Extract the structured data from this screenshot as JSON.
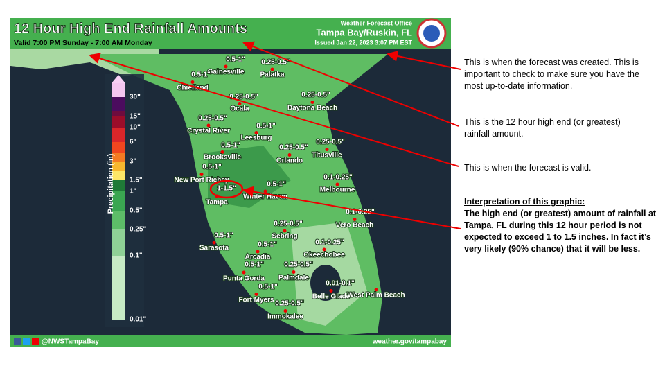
{
  "header": {
    "title": "12 Hour High End Rainfall Amounts",
    "valid": "Valid 7:00 PM Sunday - 7:00 AM Monday",
    "office": "Weather Forecast Office",
    "office_name": "Tampa Bay/Ruskin, FL",
    "issued": "Issued Jan 22, 2023 3:07 PM EST"
  },
  "legend": {
    "label": "Precipitation (in)",
    "ticks": [
      "30\"",
      "15\"",
      "10\"",
      "6\"",
      "3\"",
      "1.5\"",
      "1\"",
      "0.5\"",
      "0.25\"",
      "0.1\"",
      "0.01\""
    ]
  },
  "cities": [
    {
      "name": "Gainesville",
      "amount": "0.5-1\""
    },
    {
      "name": "Palatka",
      "amount": "0.25-0.5\""
    },
    {
      "name": "Chiefland",
      "amount": "0.5-1\""
    },
    {
      "name": "Ocala",
      "amount": "0.25-0.5\""
    },
    {
      "name": "Daytona Beach",
      "amount": "0.25-0.5\""
    },
    {
      "name": "Crystal River",
      "amount": "0.25-0.5\""
    },
    {
      "name": "Leesburg",
      "amount": "0.5-1\""
    },
    {
      "name": "Brooksville",
      "amount": "0.5-1\""
    },
    {
      "name": "Orlando",
      "amount": "0.25-0.5\""
    },
    {
      "name": "Titusville",
      "amount": "0.25-0.5\""
    },
    {
      "name": "New Port Richey",
      "amount": "0.5-1\""
    },
    {
      "name": "Tampa",
      "amount": "1-1.5\""
    },
    {
      "name": "Winter Haven",
      "amount": "0.5-1\""
    },
    {
      "name": "Melbourne",
      "amount": "0.1-0.25\""
    },
    {
      "name": "Vero Beach",
      "amount": "0.1-0.25\""
    },
    {
      "name": "Sarasota",
      "amount": "0.5-1\""
    },
    {
      "name": "Sebring",
      "amount": "0.25-0.5\""
    },
    {
      "name": "Arcadia",
      "amount": "0.5-1\""
    },
    {
      "name": "Okeechobee",
      "amount": "0.1-0.25\""
    },
    {
      "name": "Punta Gorda",
      "amount": "0.5-1\""
    },
    {
      "name": "Palmdale",
      "amount": "0.25-0.5\""
    },
    {
      "name": "Fort Myers",
      "amount": "0.5-1\""
    },
    {
      "name": "Immokalee",
      "amount": "0.25-0.5\""
    },
    {
      "name": "Belle Glade",
      "amount": "0.01-0.1\""
    },
    {
      "name": "West Palm Beach"
    }
  ],
  "footer": {
    "handle": "@NWSTampaBay",
    "url": "weather.gov/tampabay"
  },
  "annotations": {
    "created": "This is when the forecast was created.  This is important to check to make sure you have the most up-to-date information.",
    "amount": "This is the 12 hour high end (or greatest) rainfall amount.",
    "valid": "This is when the forecast is valid.",
    "interpretation_title": "Interpretation of this graphic:",
    "interpretation": "The high end (or greatest) amount of rainfall at Tampa, FL during this 12 hour period is not expected to exceed 1 to 1.5 inches. In fact it’s very likely (90% chance) that it will be less."
  }
}
